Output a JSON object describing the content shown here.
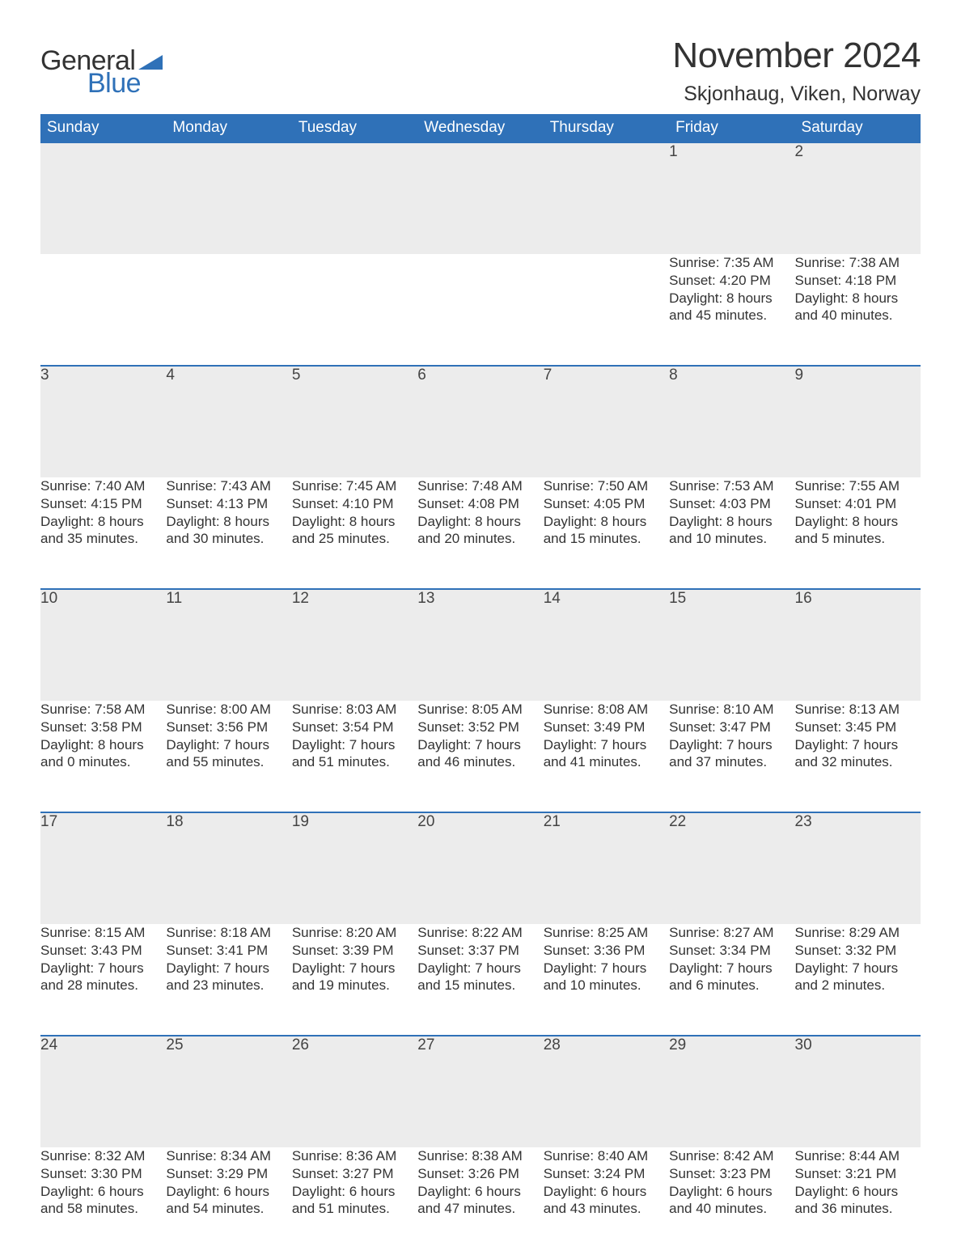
{
  "logo": {
    "text1": "General",
    "text2": "Blue",
    "triangle_color": "#2f71b8"
  },
  "title": "November 2024",
  "location": "Skjonhaug, Viken, Norway",
  "colors": {
    "header_bg": "#2f71b8",
    "header_text": "#ffffff",
    "row_divider": "#2f71b8",
    "daynum_bg": "#ececec",
    "page_bg": "#ffffff",
    "text": "#333333"
  },
  "typography": {
    "title_fontsize": 44,
    "location_fontsize": 25,
    "header_fontsize": 19,
    "daynum_fontsize": 19,
    "body_fontsize": 17,
    "logo_fontsize": 34
  },
  "layout": {
    "columns": 7,
    "rows": 5,
    "first_weekday": "Sunday",
    "first_day_column_index": 5
  },
  "weekdays": [
    "Sunday",
    "Monday",
    "Tuesday",
    "Wednesday",
    "Thursday",
    "Friday",
    "Saturday"
  ],
  "labels": {
    "sunrise": "Sunrise:",
    "sunset": "Sunset:",
    "daylight": "Daylight:"
  },
  "days": [
    {
      "n": 1,
      "sunrise": "7:35 AM",
      "sunset": "4:20 PM",
      "dl": "8 hours and 45 minutes."
    },
    {
      "n": 2,
      "sunrise": "7:38 AM",
      "sunset": "4:18 PM",
      "dl": "8 hours and 40 minutes."
    },
    {
      "n": 3,
      "sunrise": "7:40 AM",
      "sunset": "4:15 PM",
      "dl": "8 hours and 35 minutes."
    },
    {
      "n": 4,
      "sunrise": "7:43 AM",
      "sunset": "4:13 PM",
      "dl": "8 hours and 30 minutes."
    },
    {
      "n": 5,
      "sunrise": "7:45 AM",
      "sunset": "4:10 PM",
      "dl": "8 hours and 25 minutes."
    },
    {
      "n": 6,
      "sunrise": "7:48 AM",
      "sunset": "4:08 PM",
      "dl": "8 hours and 20 minutes."
    },
    {
      "n": 7,
      "sunrise": "7:50 AM",
      "sunset": "4:05 PM",
      "dl": "8 hours and 15 minutes."
    },
    {
      "n": 8,
      "sunrise": "7:53 AM",
      "sunset": "4:03 PM",
      "dl": "8 hours and 10 minutes."
    },
    {
      "n": 9,
      "sunrise": "7:55 AM",
      "sunset": "4:01 PM",
      "dl": "8 hours and 5 minutes."
    },
    {
      "n": 10,
      "sunrise": "7:58 AM",
      "sunset": "3:58 PM",
      "dl": "8 hours and 0 minutes."
    },
    {
      "n": 11,
      "sunrise": "8:00 AM",
      "sunset": "3:56 PM",
      "dl": "7 hours and 55 minutes."
    },
    {
      "n": 12,
      "sunrise": "8:03 AM",
      "sunset": "3:54 PM",
      "dl": "7 hours and 51 minutes."
    },
    {
      "n": 13,
      "sunrise": "8:05 AM",
      "sunset": "3:52 PM",
      "dl": "7 hours and 46 minutes."
    },
    {
      "n": 14,
      "sunrise": "8:08 AM",
      "sunset": "3:49 PM",
      "dl": "7 hours and 41 minutes."
    },
    {
      "n": 15,
      "sunrise": "8:10 AM",
      "sunset": "3:47 PM",
      "dl": "7 hours and 37 minutes."
    },
    {
      "n": 16,
      "sunrise": "8:13 AM",
      "sunset": "3:45 PM",
      "dl": "7 hours and 32 minutes."
    },
    {
      "n": 17,
      "sunrise": "8:15 AM",
      "sunset": "3:43 PM",
      "dl": "7 hours and 28 minutes."
    },
    {
      "n": 18,
      "sunrise": "8:18 AM",
      "sunset": "3:41 PM",
      "dl": "7 hours and 23 minutes."
    },
    {
      "n": 19,
      "sunrise": "8:20 AM",
      "sunset": "3:39 PM",
      "dl": "7 hours and 19 minutes."
    },
    {
      "n": 20,
      "sunrise": "8:22 AM",
      "sunset": "3:37 PM",
      "dl": "7 hours and 15 minutes."
    },
    {
      "n": 21,
      "sunrise": "8:25 AM",
      "sunset": "3:36 PM",
      "dl": "7 hours and 10 minutes."
    },
    {
      "n": 22,
      "sunrise": "8:27 AM",
      "sunset": "3:34 PM",
      "dl": "7 hours and 6 minutes."
    },
    {
      "n": 23,
      "sunrise": "8:29 AM",
      "sunset": "3:32 PM",
      "dl": "7 hours and 2 minutes."
    },
    {
      "n": 24,
      "sunrise": "8:32 AM",
      "sunset": "3:30 PM",
      "dl": "6 hours and 58 minutes."
    },
    {
      "n": 25,
      "sunrise": "8:34 AM",
      "sunset": "3:29 PM",
      "dl": "6 hours and 54 minutes."
    },
    {
      "n": 26,
      "sunrise": "8:36 AM",
      "sunset": "3:27 PM",
      "dl": "6 hours and 51 minutes."
    },
    {
      "n": 27,
      "sunrise": "8:38 AM",
      "sunset": "3:26 PM",
      "dl": "6 hours and 47 minutes."
    },
    {
      "n": 28,
      "sunrise": "8:40 AM",
      "sunset": "3:24 PM",
      "dl": "6 hours and 43 minutes."
    },
    {
      "n": 29,
      "sunrise": "8:42 AM",
      "sunset": "3:23 PM",
      "dl": "6 hours and 40 minutes."
    },
    {
      "n": 30,
      "sunrise": "8:44 AM",
      "sunset": "3:21 PM",
      "dl": "6 hours and 36 minutes."
    }
  ]
}
